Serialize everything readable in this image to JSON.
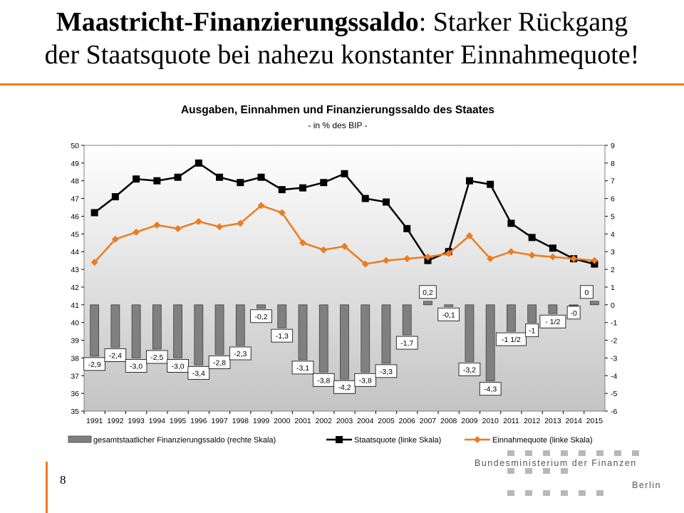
{
  "slide": {
    "title_bold": "Maastricht-Finanzierungssaldo",
    "title_rest_line1": ": Starker Rückgang",
    "title_line2": "der Staatsquote bei nahezu konstanter Einnahmequote!",
    "page_number": "8",
    "accent_color": "#ec7c1f"
  },
  "logo": {
    "line1": "Bundesministerium der Finanzen",
    "line2": "Berlin",
    "icon": "dot-grid-logo"
  },
  "chart_data": {
    "type": "bar",
    "title": "Ausgaben, Einnahmen und Finanzierungssaldo des Staates",
    "subtitle": "- in % des BIP -",
    "categories": [
      "1991",
      "1992",
      "1993",
      "1994",
      "1995",
      "1996",
      "1997",
      "1998",
      "1999",
      "2000",
      "2001",
      "2002",
      "2003",
      "2004",
      "2005",
      "2006",
      "2007",
      "2008",
      "2009",
      "2010",
      "2011",
      "2012",
      "2013",
      "2014",
      "2015"
    ],
    "y_left": {
      "min": 35,
      "max": 50,
      "step": 1
    },
    "y_right": {
      "min": -6,
      "max": 9,
      "step": 1
    },
    "grid": false,
    "legend_position": "bottom",
    "series": [
      {
        "name": "gesamtstaatlicher Finanzierungssaldo (rechte Skala)",
        "type": "bar",
        "axis": "right",
        "color": "#808080",
        "values": [
          -2.9,
          -2.4,
          -3.0,
          -2.5,
          -3.0,
          -3.4,
          -2.8,
          -2.3,
          -0.2,
          -1.3,
          -3.1,
          -3.8,
          -4.2,
          -3.8,
          -3.3,
          -1.7,
          0.2,
          -0.1,
          -3.2,
          -4.3,
          -1.5,
          -1.0,
          -0.5,
          0.0,
          0.2
        ],
        "labels": [
          "-2,9",
          "-2,4",
          "-3,0",
          "-2,5",
          "-3,0",
          "-3,4",
          "-2,8",
          "-2,3",
          "-0,2",
          "-1,3",
          "-3,1",
          "-3,8",
          "-4,2",
          "-3,8",
          "-3,3",
          "-1,7",
          "0,2",
          "-0,1",
          "-3,2",
          "-4,3",
          "-1 1/2",
          "-1",
          "- 1/2",
          "-0",
          "0"
        ]
      },
      {
        "name": "Staatsquote (linke Skala)",
        "type": "line",
        "axis": "left",
        "color": "#000000",
        "marker": "square",
        "values": [
          46.2,
          47.1,
          48.1,
          48.0,
          48.2,
          49.0,
          48.2,
          47.9,
          48.2,
          47.5,
          47.6,
          47.9,
          48.4,
          47.0,
          46.8,
          45.3,
          43.5,
          44.0,
          48.0,
          47.8,
          45.6,
          44.8,
          44.2,
          43.6,
          43.3
        ]
      },
      {
        "name": "Einnahmequote (linke Skala)",
        "type": "line",
        "axis": "left",
        "color": "#ec7c1f",
        "marker": "diamond",
        "values": [
          43.4,
          44.7,
          45.1,
          45.5,
          45.3,
          45.7,
          45.4,
          45.6,
          46.6,
          46.2,
          44.5,
          44.1,
          44.3,
          43.3,
          43.5,
          43.6,
          43.7,
          43.9,
          44.9,
          43.6,
          44.0,
          43.8,
          43.7,
          43.6,
          43.5
        ]
      }
    ]
  }
}
